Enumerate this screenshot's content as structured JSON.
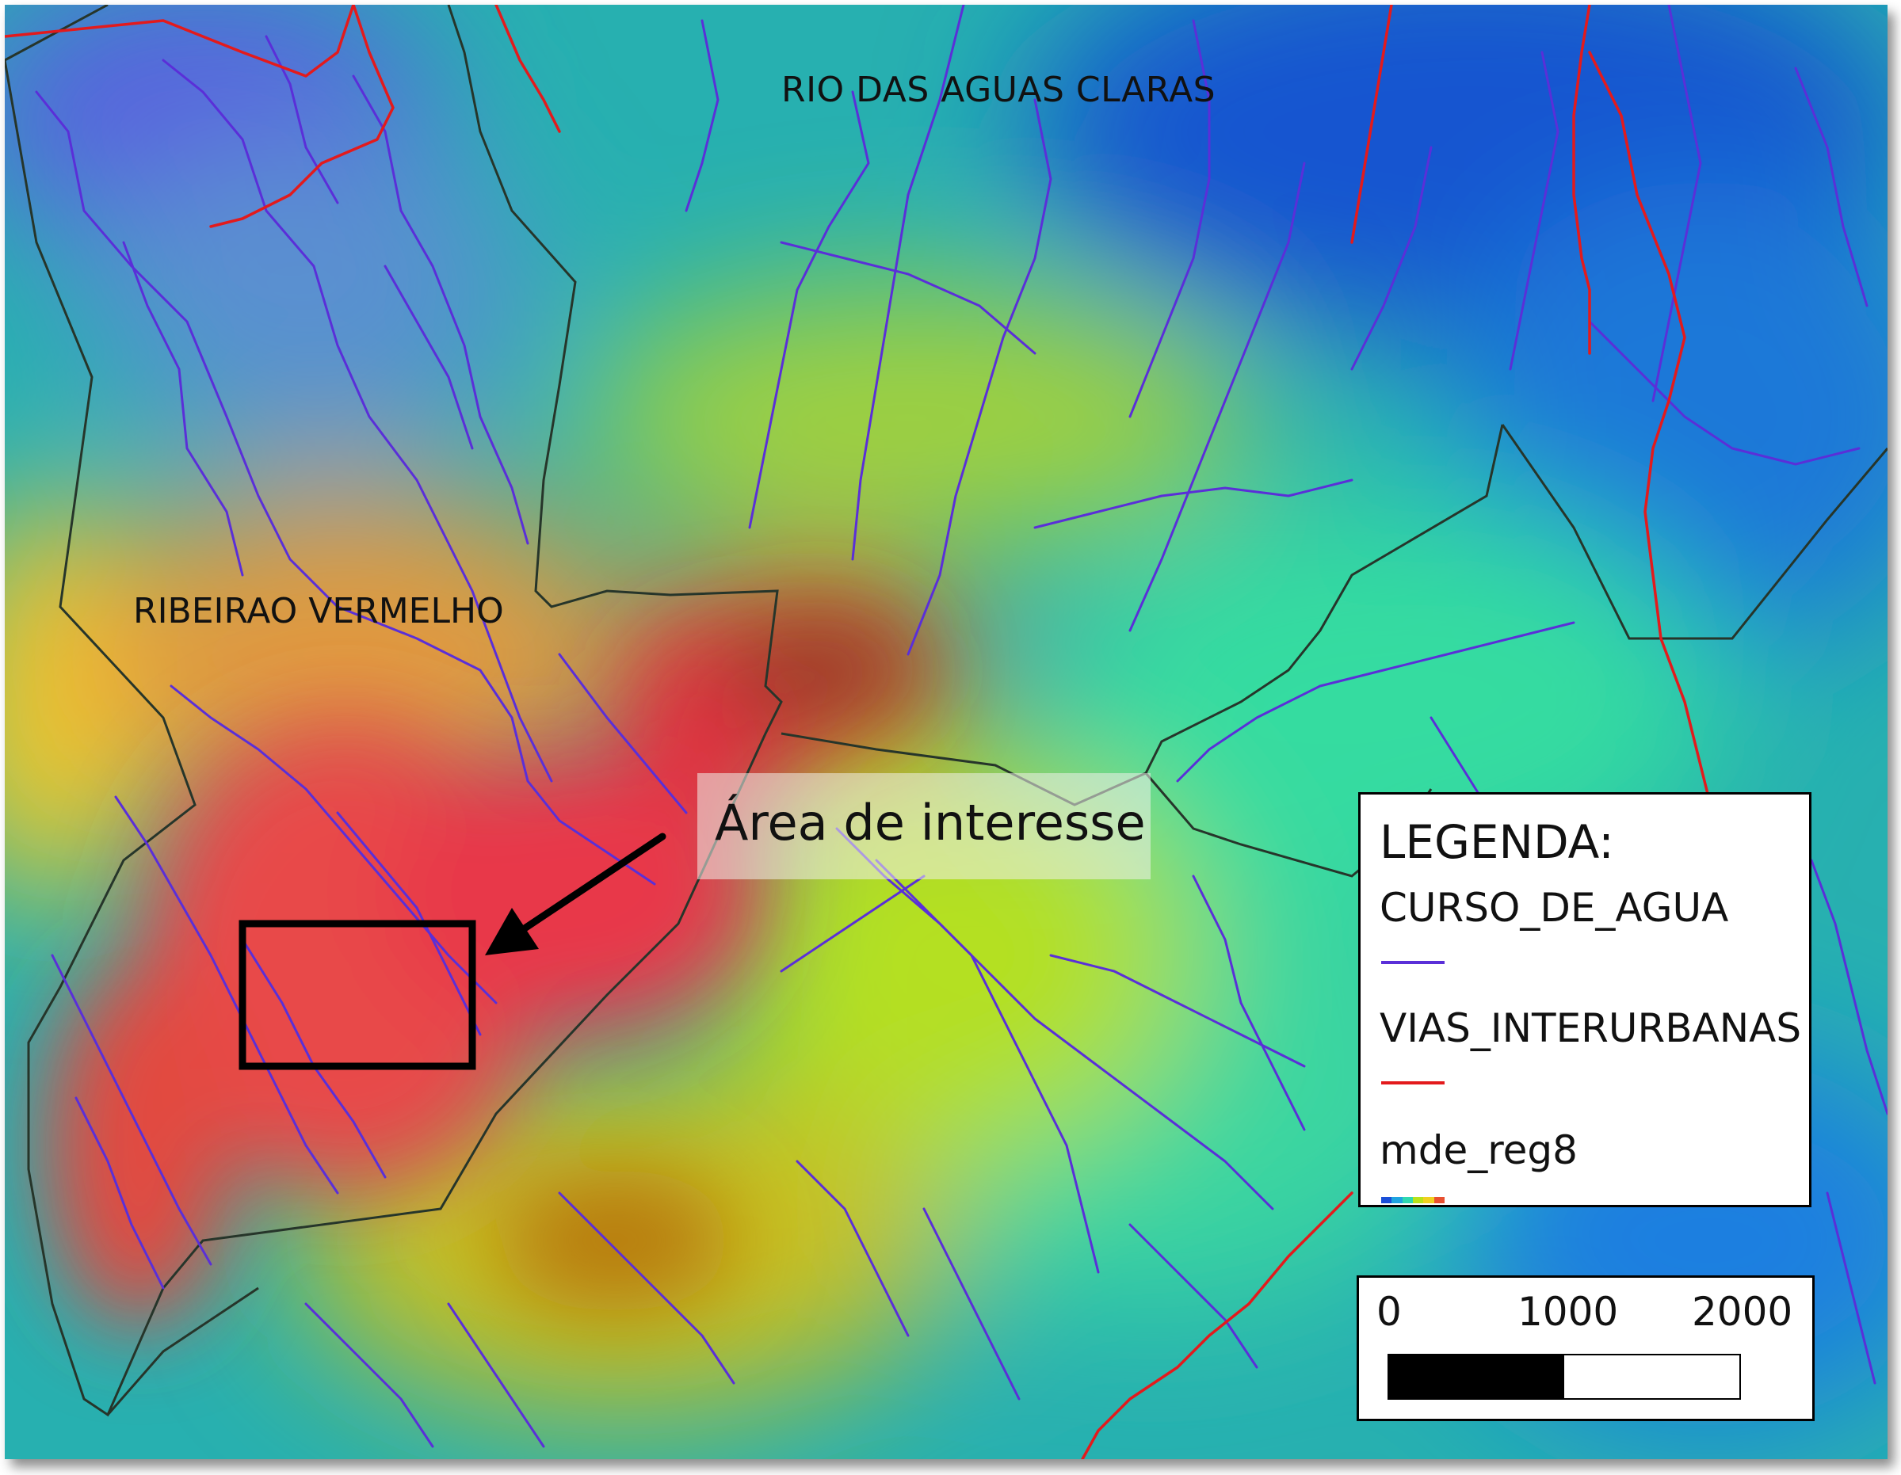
{
  "map": {
    "labels": {
      "north_basin": "RIO DAS AGUAS CLARAS",
      "west_basin": "RIBEIRAO VERMELHO"
    },
    "callout": "Área de interesse",
    "elevation_ramp_colors": [
      "#1a4fd8",
      "#1fa4e0",
      "#2fd8b0",
      "#b8e21a",
      "#f0d020",
      "#e85030"
    ],
    "colors": {
      "stream": "#5a2fd8",
      "road": "#e31a1c",
      "basin_outline": "#2a3a2a",
      "area_box": "#000000"
    }
  },
  "legend": {
    "title": "LEGENDA:",
    "items": [
      {
        "label": "CURSO_DE_AGUA",
        "symbol": "line",
        "color": "#5a2fd8"
      },
      {
        "label": "VIAS_INTERURBANAS",
        "symbol": "line",
        "color": "#e31a1c"
      },
      {
        "label": "mde_reg8",
        "symbol": "ramp"
      }
    ]
  },
  "scale_bar": {
    "ticks": [
      "0",
      "1000",
      "2000"
    ]
  }
}
